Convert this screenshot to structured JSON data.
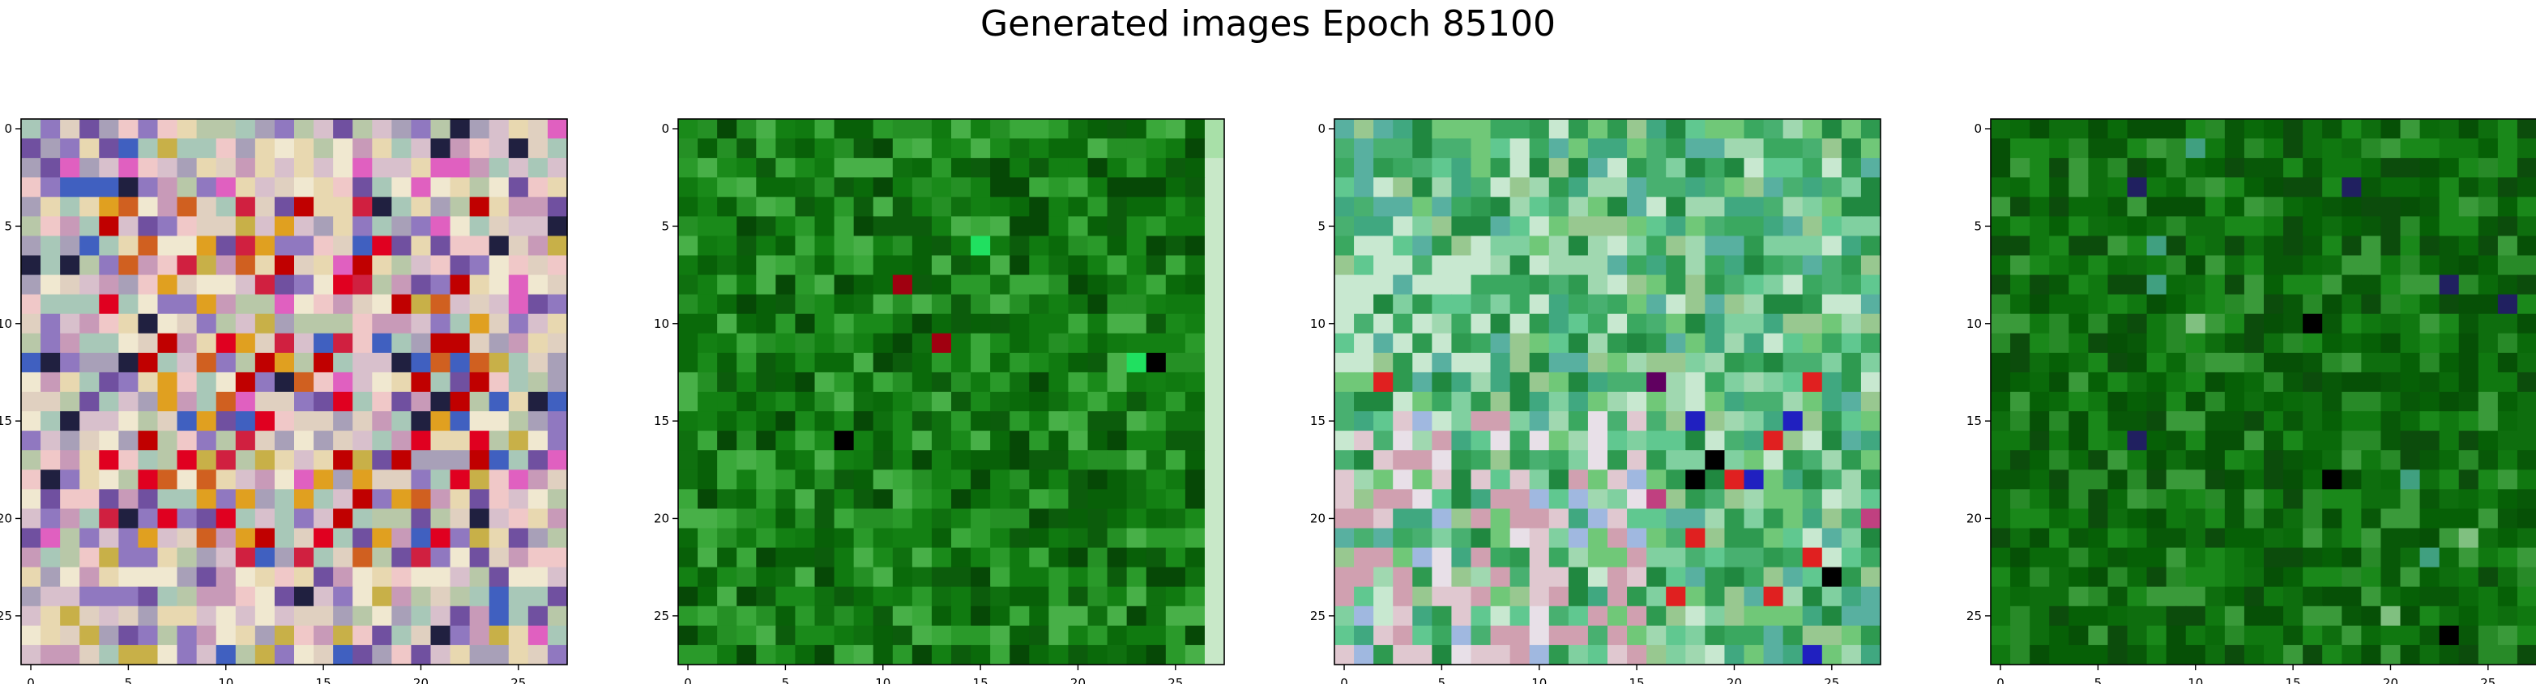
{
  "figure": {
    "title": "Generated images Epoch 85100"
  },
  "chart_data": [
    {
      "type": "heatmap",
      "title": "",
      "xlabel": "",
      "ylabel": "",
      "grid": 28,
      "xlim": [
        -0.5,
        27.5
      ],
      "ylim": [
        27.5,
        -0.5
      ],
      "xticks": [
        "0",
        "5",
        "10",
        "15",
        "20",
        "25"
      ],
      "yticks": [
        "0",
        "5",
        "10",
        "15",
        "20",
        "25"
      ],
      "palette": [
        "#a8a0b8",
        "#d8c0cc",
        "#c89ab8",
        "#e0d0c0",
        "#b8c8a8",
        "#e8d8b0",
        "#d02040",
        "#c00000",
        "#e00020",
        "#f0c8c8",
        "#9078c0",
        "#7050a0",
        "#e0a020",
        "#d06020",
        "#f0e8d0",
        "#4060c0",
        "#202040",
        "#a8c8b8",
        "#c8b048",
        "#e060c0"
      ],
      "scheme": "warm-pastel with red core"
    },
    {
      "type": "heatmap",
      "title": "",
      "xlabel": "",
      "ylabel": "",
      "grid": 28,
      "xlim": [
        -0.5,
        27.5
      ],
      "ylim": [
        27.5,
        -0.5
      ],
      "xticks": [
        "0",
        "5",
        "10",
        "15",
        "20",
        "25"
      ],
      "yticks": [
        "0",
        "5",
        "10",
        "15",
        "20",
        "25"
      ],
      "palette": [
        "#0a6a0a",
        "#107a10",
        "#0c5c0c",
        "#1a8a1a",
        "#2a9a2a",
        "#064806",
        "#138013",
        "#3aa83a",
        "#0f700f",
        "#259025",
        "#086008",
        "#48b048"
      ],
      "accents": [
        "#000000",
        "#0000a0",
        "#a00010",
        "#c0c020",
        "#20e060",
        "#e0e0e0"
      ],
      "edge_column": "#c8e8c8",
      "scheme": "green"
    },
    {
      "type": "heatmap",
      "title": "",
      "xlabel": "",
      "ylabel": "",
      "grid": 28,
      "xlim": [
        -0.5,
        27.5
      ],
      "ylim": [
        27.5,
        -0.5
      ],
      "xticks": [
        "0",
        "5",
        "10",
        "15",
        "20",
        "25"
      ],
      "yticks": [
        "0",
        "5",
        "10",
        "15",
        "20",
        "25"
      ],
      "palette": [
        "#60c890",
        "#48b070",
        "#80d0a0",
        "#3aa860",
        "#a0d8b0",
        "#2e9a50",
        "#58b0a0",
        "#70c878",
        "#c8e8d0",
        "#40a880",
        "#208840",
        "#98c890"
      ],
      "accents": [
        "#e0c8d0",
        "#d0a0b0",
        "#c04080",
        "#600060",
        "#000000",
        "#e02020",
        "#2020c0",
        "#a0b8e0",
        "#e8e0e8"
      ],
      "scheme": "teal-green with pastel lower rows"
    },
    {
      "type": "heatmap",
      "title": "",
      "xlabel": "",
      "ylabel": "",
      "grid": 28,
      "xlim": [
        -0.5,
        27.5
      ],
      "ylim": [
        27.5,
        -0.5
      ],
      "xticks": [
        "0",
        "5",
        "10",
        "15",
        "20",
        "25"
      ],
      "yticks": [
        "0",
        "5",
        "10",
        "15",
        "20",
        "25"
      ],
      "palette": [
        "#0a6a0a",
        "#085808",
        "#107810",
        "#0c4c0c",
        "#1a881a",
        "#288a28",
        "#065006",
        "#3a9a3a",
        "#0e6e0e",
        "#066006"
      ],
      "accents": [
        "#000000",
        "#202060",
        "#40a080",
        "#80c080"
      ],
      "scheme": "dark green"
    }
  ]
}
